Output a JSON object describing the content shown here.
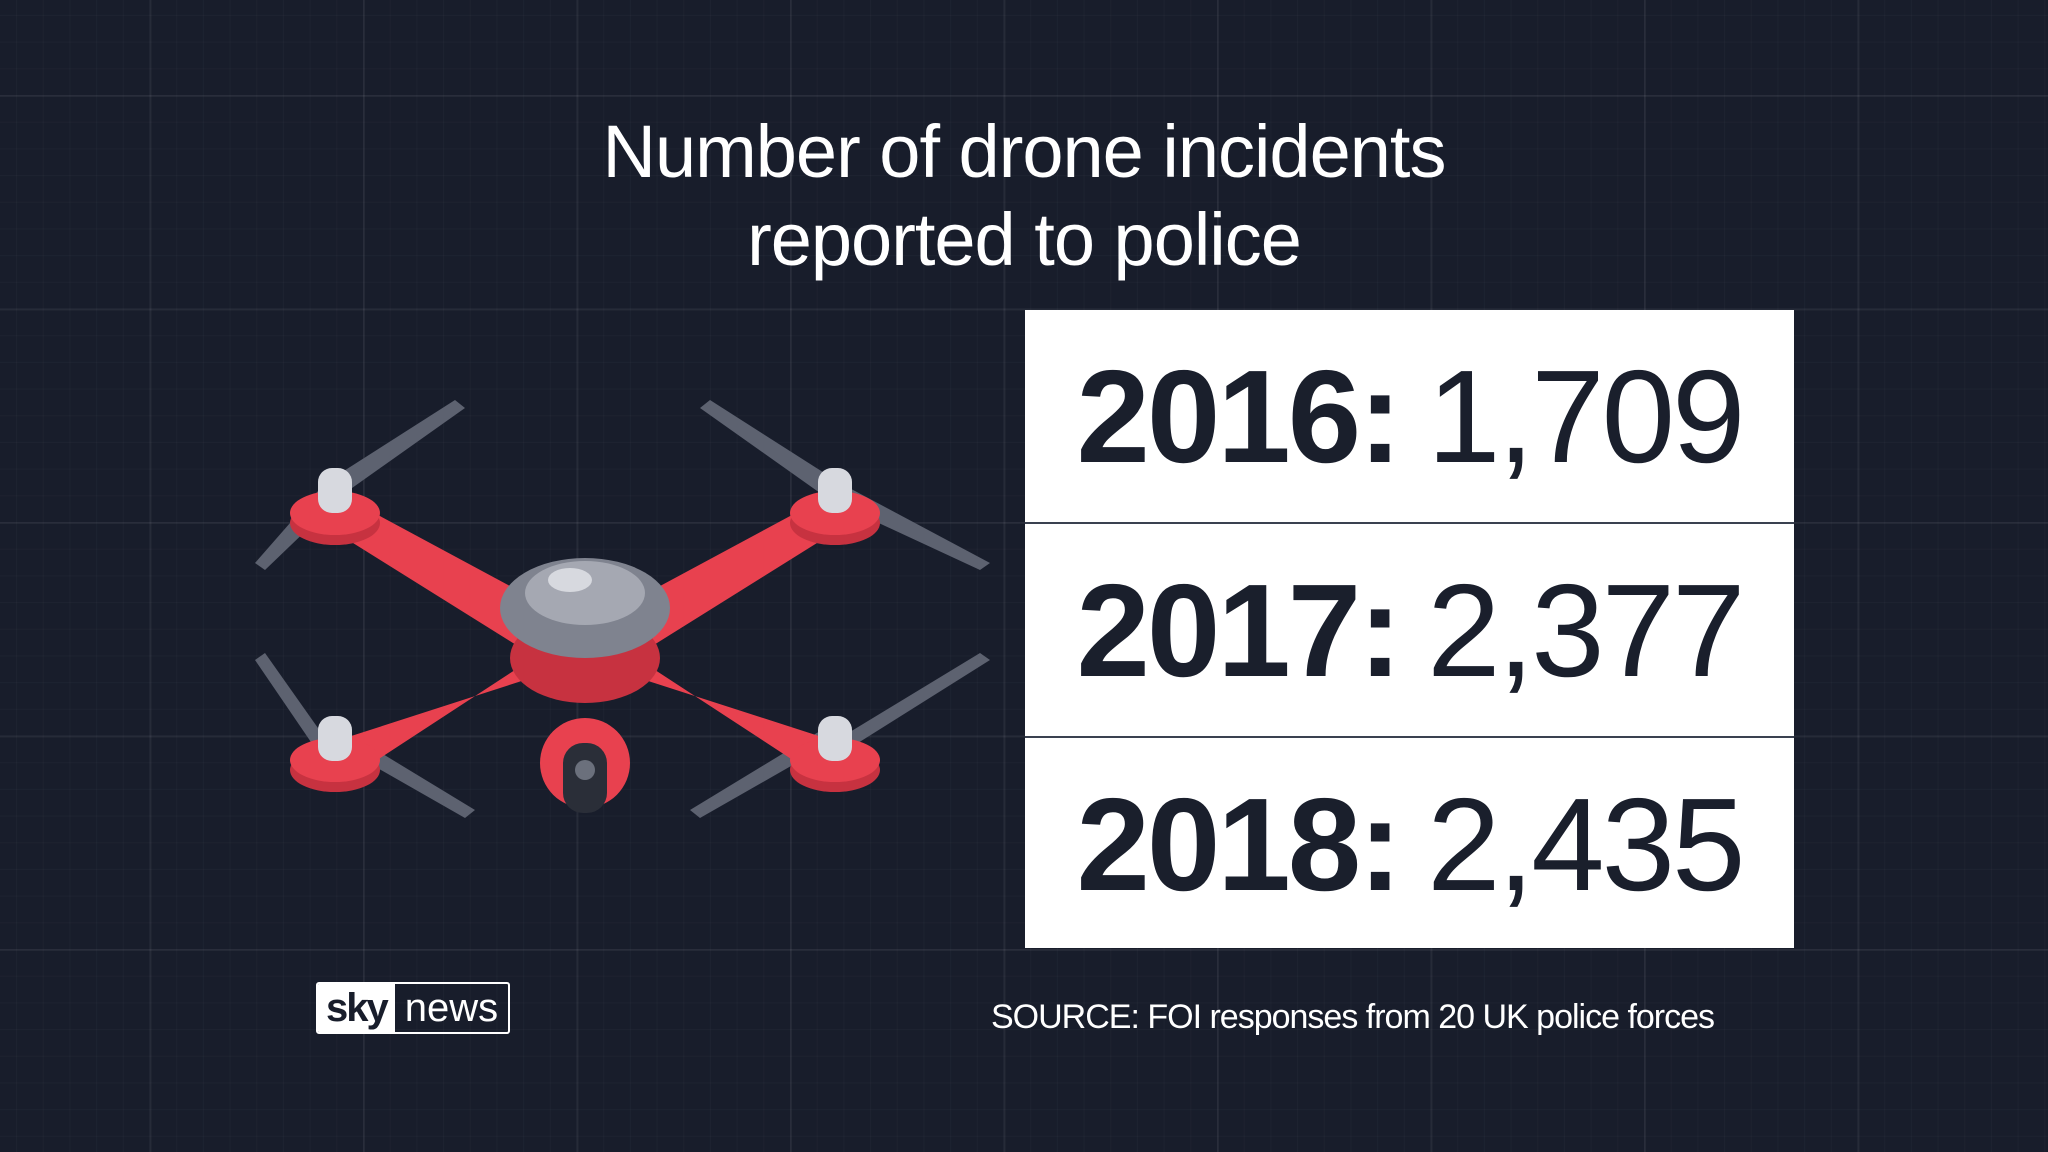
{
  "title_lines": [
    "Number of drone incidents",
    "reported to police"
  ],
  "chart_data": {
    "type": "table",
    "title": "Number of drone incidents reported to police",
    "rows": [
      {
        "year": "2016:",
        "value": "1,709"
      },
      {
        "year": "2017:",
        "value": "2,377"
      },
      {
        "year": "2018:",
        "value": "2,435"
      }
    ],
    "values": [
      1709,
      2377,
      2435
    ],
    "categories": [
      "2016",
      "2017",
      "2018"
    ]
  },
  "logo": {
    "sky": "sky",
    "news": "news"
  },
  "source": "SOURCE: FOI responses from 20 UK police forces",
  "colors": {
    "background": "#181d2b",
    "drone_body": "#e8414f",
    "table_bg": "#ffffff",
    "text_dark": "#1a1f2c"
  },
  "illustration": "drone-icon"
}
